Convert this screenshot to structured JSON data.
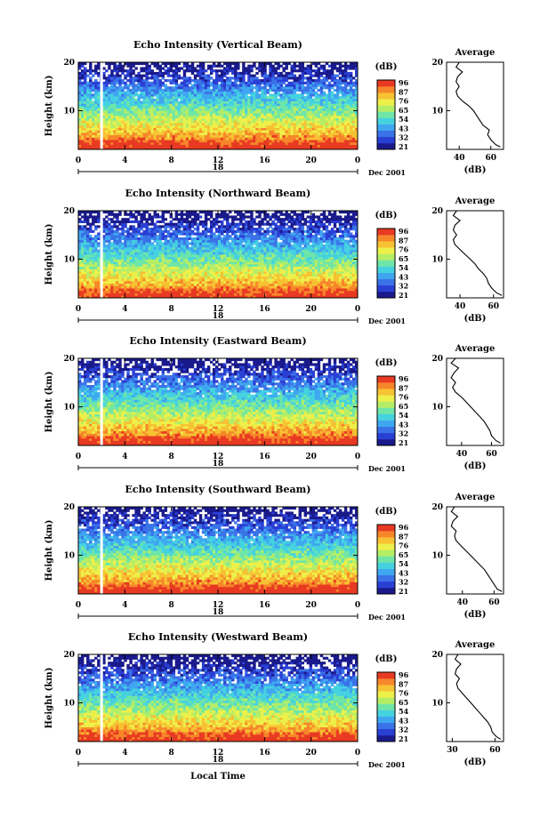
{
  "chart_data": {
    "type": "heatmap",
    "units": "dB",
    "xlabel": "Local Time",
    "ylabel": "Height (km)",
    "xticks": [
      "0",
      "4",
      "8",
      "12",
      "16",
      "20",
      "0"
    ],
    "yticks": [
      "10",
      "20"
    ],
    "xlim": [
      0,
      24
    ],
    "ylim": [
      2,
      20
    ],
    "date_marker": "18",
    "date_label": "Dec 2001",
    "colorbar_unit": "(dB)",
    "colorbar_ticks": [
      "96",
      "87",
      "76",
      "65",
      "54",
      "43",
      "32",
      "21"
    ],
    "colors": [
      "#1a1a8c",
      "#2a3fd4",
      "#3a72e8",
      "#3fa7f0",
      "#45d2e0",
      "#6fe6a8",
      "#b5ee66",
      "#eef04a",
      "#f7c233",
      "#f7862a",
      "#e83a22"
    ],
    "data_gap_hour": 2,
    "panels": [
      {
        "title": "Echo Intensity (Vertical Beam)",
        "avg_title": "Average",
        "avg_xlabel": "(dB)",
        "avg_xticks": [
          "40",
          "60"
        ],
        "avg_xlim": [
          32,
          68
        ],
        "avg_yticks": [
          "10",
          "20"
        ],
        "average_profile": {
          "height_km": [
            2.5,
            3,
            4,
            5,
            6,
            7,
            8,
            9,
            10,
            11,
            12,
            13,
            14,
            15,
            16,
            17,
            18,
            19,
            20
          ],
          "db": [
            66,
            63,
            60,
            58,
            59,
            55,
            53,
            51,
            49,
            46,
            42,
            39,
            38,
            40,
            38,
            39,
            42,
            38,
            40
          ]
        }
      },
      {
        "title": "Echo Intensity (Northward Beam)",
        "avg_title": "Average",
        "avg_xlabel": "(dB)",
        "avg_xticks": [
          "40",
          "60"
        ],
        "avg_xlim": [
          32,
          66
        ],
        "avg_yticks": [
          "10",
          "20"
        ],
        "average_profile": {
          "height_km": [
            2.5,
            3,
            4,
            5,
            6,
            7,
            8,
            9,
            10,
            11,
            12,
            13,
            14,
            15,
            16,
            17,
            18,
            19,
            20
          ],
          "db": [
            65,
            62,
            59,
            57,
            56,
            54,
            51,
            49,
            46,
            43,
            40,
            37,
            36,
            38,
            36,
            37,
            40,
            36,
            38
          ]
        }
      },
      {
        "title": "Echo Intensity (Eastward Beam)",
        "avg_title": "Average",
        "avg_xlabel": "(dB)",
        "avg_xticks": [
          "40",
          "60"
        ],
        "avg_xlim": [
          30,
          68
        ],
        "avg_yticks": [
          "10",
          "20"
        ],
        "average_profile": {
          "height_km": [
            2.5,
            3,
            4,
            5,
            6,
            7,
            8,
            9,
            10,
            11,
            12,
            13,
            14,
            15,
            16,
            17,
            18,
            19,
            20
          ],
          "db": [
            66,
            63,
            60,
            59,
            57,
            55,
            52,
            49,
            46,
            43,
            40,
            36,
            34,
            36,
            33,
            35,
            38,
            33,
            36
          ]
        }
      },
      {
        "title": "Echo Intensity (Southward Beam)",
        "avg_title": "Average",
        "avg_xlabel": "(dB)",
        "avg_xticks": [
          "40",
          "60"
        ],
        "avg_xlim": [
          30,
          66
        ],
        "avg_yticks": [
          "10",
          "20"
        ],
        "average_profile": {
          "height_km": [
            2.5,
            3,
            4,
            5,
            6,
            7,
            8,
            9,
            10,
            11,
            12,
            13,
            14,
            15,
            16,
            17,
            18,
            19,
            20
          ],
          "db": [
            65,
            62,
            60,
            58,
            56,
            54,
            51,
            48,
            45,
            42,
            39,
            36,
            35,
            36,
            33,
            34,
            37,
            33,
            35
          ]
        }
      },
      {
        "title": "Echo Intensity (Westward Beam)",
        "avg_title": "Average",
        "avg_xlabel": "(dB)",
        "avg_xticks": [
          "30",
          "60"
        ],
        "avg_xlim": [
          26,
          66
        ],
        "avg_yticks": [
          "10",
          "20"
        ],
        "average_profile": {
          "height_km": [
            2.5,
            3,
            4,
            5,
            6,
            7,
            8,
            9,
            10,
            11,
            12,
            13,
            14,
            15,
            16,
            17,
            18,
            19,
            20
          ],
          "db": [
            64,
            61,
            58,
            57,
            55,
            52,
            49,
            46,
            43,
            40,
            37,
            34,
            33,
            35,
            32,
            33,
            36,
            32,
            34
          ]
        }
      }
    ]
  }
}
